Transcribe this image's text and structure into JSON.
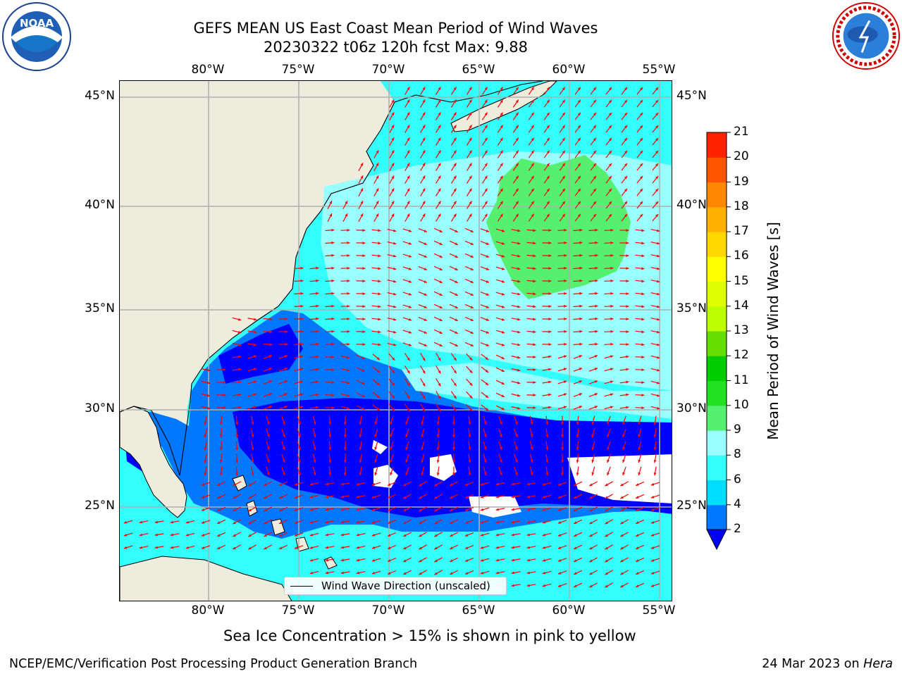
{
  "header": {
    "title_line1": "GEFS MEAN US East Coast Mean Period of Wind Waves",
    "title_line2": "20230322 t06z 120h fcst   Max: 9.88"
  },
  "logos": {
    "left": "NOAA",
    "right": "NATIONAL WEATHER SERVICE"
  },
  "map": {
    "lon_labels": [
      "80°W",
      "75°W",
      "70°W",
      "65°W",
      "60°W",
      "55°W"
    ],
    "lat_labels": [
      "45°N",
      "40°N",
      "35°N",
      "30°N",
      "25°N"
    ],
    "lon_range": [
      -85,
      -54
    ],
    "lat_range": [
      20.5,
      45.8
    ],
    "legend_label": "Wind Wave Direction (unscaled)",
    "arrow_color": "#ff0000",
    "land_color": "#eeecdc",
    "gridline_color": "#b0b0b0"
  },
  "colorbar": {
    "label": "Mean Period of Wind Waves [s]",
    "ticks": [
      "2",
      "4",
      "6",
      "8",
      "9",
      "10",
      "11",
      "12",
      "13",
      "14",
      "15",
      "16",
      "17",
      "18",
      "19",
      "20",
      "21"
    ],
    "colors": [
      "#0077ff",
      "#00ddff",
      "#33ffff",
      "#99ffff",
      "#55f070",
      "#22e022",
      "#00cc00",
      "#66dd00",
      "#bbff00",
      "#ddff00",
      "#ffff00",
      "#ffd800",
      "#ffb000",
      "#ff8800",
      "#ff5500",
      "#ff2200",
      "#ff0000"
    ],
    "under_color": "#0000ff"
  },
  "notes": {
    "sea_ice": "Sea Ice Concentration > 15% is shown in pink to yellow"
  },
  "footer": {
    "left": "NCEP/EMC/Verification Post Processing Product Generation Branch",
    "right_date": "24 Mar 2023 on ",
    "right_machine": "Hera"
  }
}
